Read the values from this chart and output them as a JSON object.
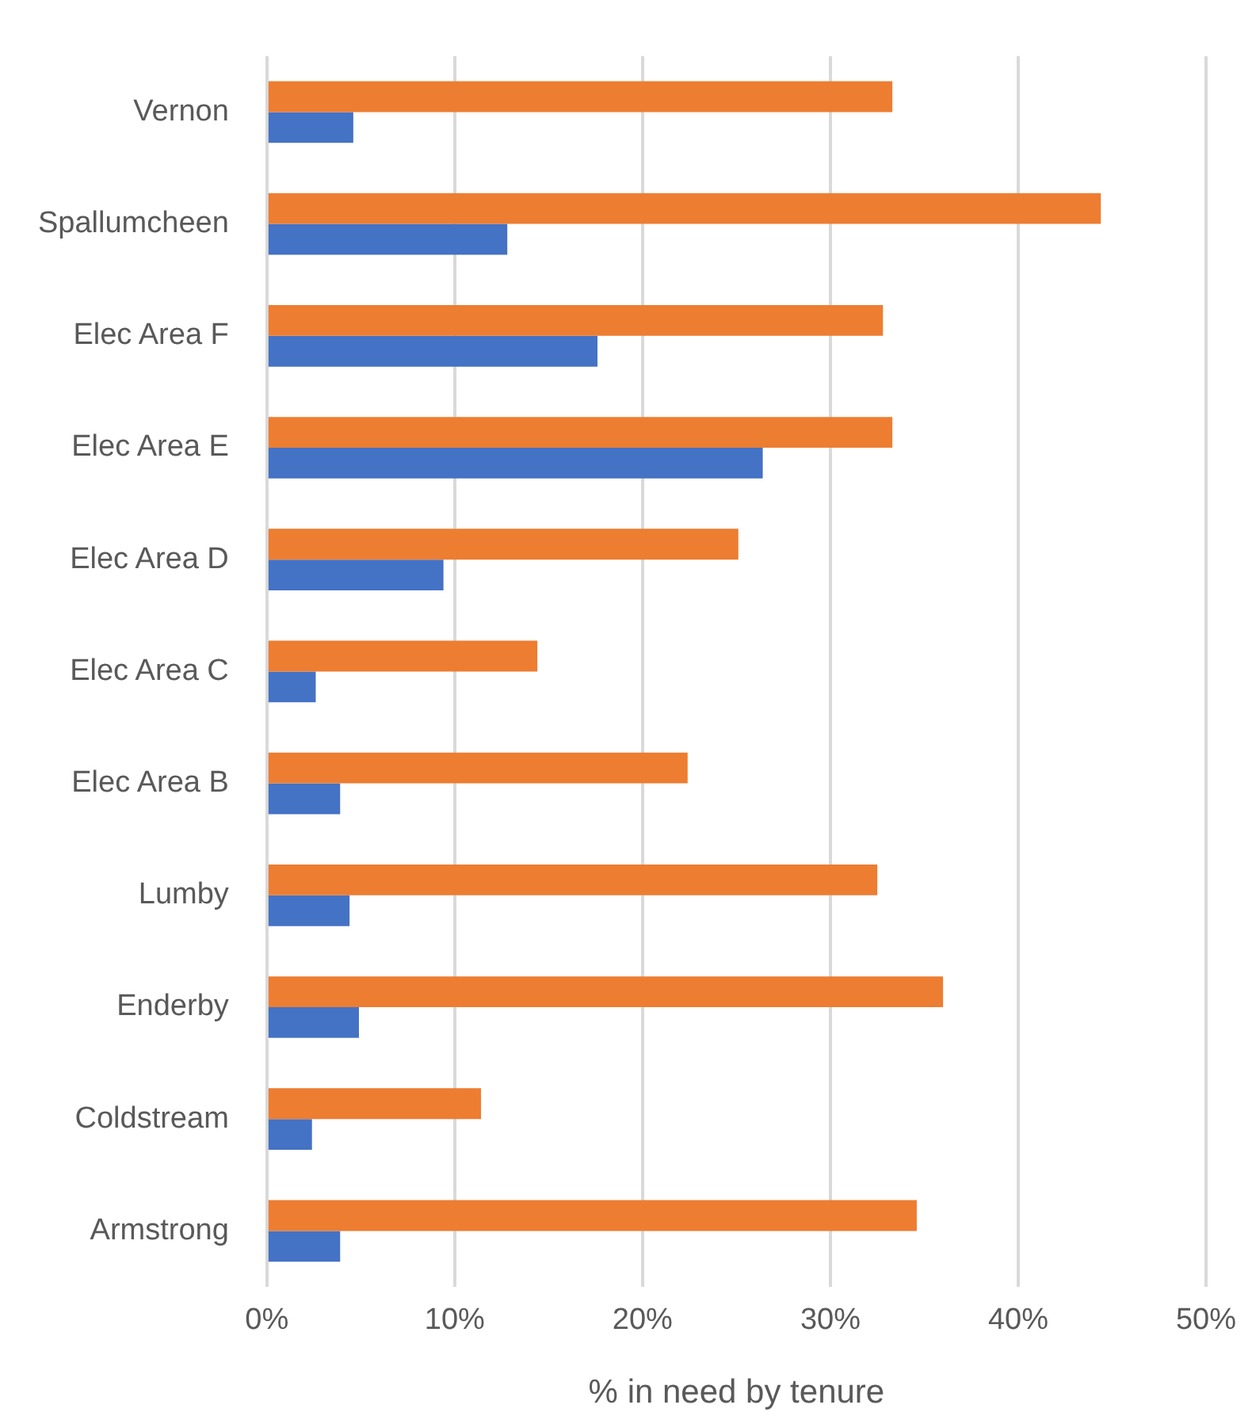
{
  "chart_data": {
    "type": "bar",
    "orientation": "horizontal",
    "xlabel": "% in need by tenure",
    "categories": [
      "Vernon",
      "Spallumcheen",
      "Elec Area F",
      "Elec Area E",
      "Elec Area D",
      "Elec Area C",
      "Elec Area B",
      "Lumby",
      "Enderby",
      "Coldstream",
      "Armstrong"
    ],
    "series": [
      {
        "color": "#ed7d31",
        "values": [
          33.3,
          44.4,
          32.8,
          33.3,
          25.1,
          14.4,
          22.4,
          32.5,
          36.0,
          11.4,
          34.6
        ]
      },
      {
        "color": "#4472c4",
        "values": [
          4.6,
          12.8,
          17.6,
          26.4,
          9.4,
          2.6,
          3.9,
          4.4,
          4.9,
          2.4,
          3.9
        ]
      }
    ],
    "xlim": [
      0,
      50
    ],
    "xticks": [
      {
        "value": 0,
        "label": "0%"
      },
      {
        "value": 10,
        "label": "10%"
      },
      {
        "value": 20,
        "label": "20%"
      },
      {
        "value": 30,
        "label": "30%"
      },
      {
        "value": 40,
        "label": "40%"
      },
      {
        "value": 50,
        "label": "50%"
      }
    ],
    "grid": "x",
    "legend": false
  }
}
